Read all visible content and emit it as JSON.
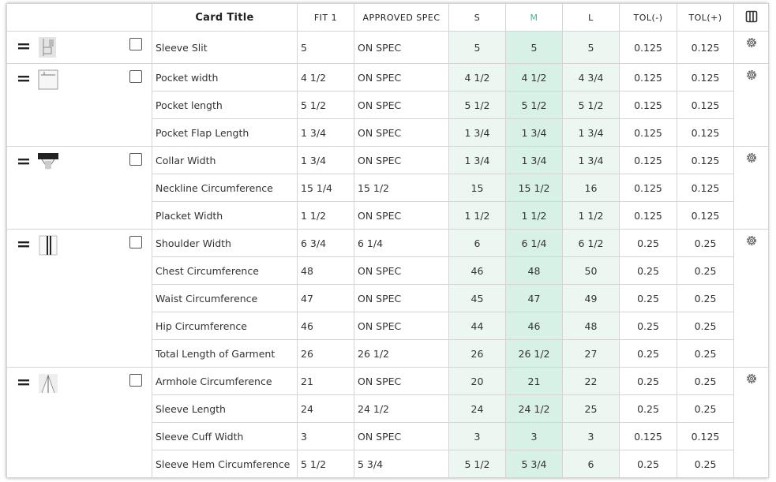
{
  "header": [
    "Card Title",
    "FIT 1",
    "APPROVED SPEC",
    "S",
    "M",
    "L",
    "TOL(-)",
    "TOL(+)"
  ],
  "groups": [
    {
      "rows": [
        [
          "Sleeve Slit",
          "5",
          "ON SPEC",
          "5",
          "5",
          "5",
          "0.125",
          "0.125"
        ]
      ]
    },
    {
      "rows": [
        [
          "Pocket width",
          "4 1/2",
          "ON SPEC",
          "4 1/2",
          "4 1/2",
          "4 3/4",
          "0.125",
          "0.125"
        ],
        [
          "Pocket length",
          "5 1/2",
          "ON SPEC",
          "5 1/2",
          "5 1/2",
          "5 1/2",
          "0.125",
          "0.125"
        ],
        [
          "Pocket Flap Length",
          "1 3/4",
          "ON SPEC",
          "1 3/4",
          "1 3/4",
          "1 3/4",
          "0.125",
          "0.125"
        ]
      ]
    },
    {
      "rows": [
        [
          "Collar Width",
          "1 3/4",
          "ON SPEC",
          "1 3/4",
          "1 3/4",
          "1 3/4",
          "0.125",
          "0.125"
        ],
        [
          "Neckline Circumference",
          "15 1/4",
          "15 1/2",
          "15",
          "15 1/2",
          "16",
          "0.125",
          "0.125"
        ],
        [
          "Placket Width",
          "1 1/2",
          "ON SPEC",
          "1 1/2",
          "1 1/2",
          "1 1/2",
          "0.125",
          "0.125"
        ]
      ]
    },
    {
      "rows": [
        [
          "Shoulder Width",
          "6 3/4",
          "6 1/4",
          "6",
          "6 1/4",
          "6 1/2",
          "0.25",
          "0.25"
        ],
        [
          "Chest Circumference",
          "48",
          "ON SPEC",
          "46",
          "48",
          "50",
          "0.25",
          "0.25"
        ],
        [
          "Waist Circumference",
          "47",
          "ON SPEC",
          "45",
          "47",
          "49",
          "0.25",
          "0.25"
        ],
        [
          "Hip Circumference",
          "46",
          "ON SPEC",
          "44",
          "46",
          "48",
          "0.25",
          "0.25"
        ],
        [
          "Total Length of Garment",
          "26",
          "26 1/2",
          "26",
          "26 1/2",
          "27",
          "0.25",
          "0.25"
        ]
      ]
    },
    {
      "rows": [
        [
          "Armhole Circumference",
          "21",
          "ON SPEC",
          "20",
          "21",
          "22",
          "0.25",
          "0.25"
        ],
        [
          "Sleeve Length",
          "24",
          "24 1/2",
          "24",
          "24 1/2",
          "25",
          "0.25",
          "0.25"
        ],
        [
          "Sleeve Cuff Width",
          "3",
          "ON SPEC",
          "3",
          "3",
          "3",
          "0.125",
          "0.125"
        ],
        [
          "Sleeve Hem Circumference",
          "5 1/2",
          "5 3/4",
          "5 1/2",
          "5 3/4",
          "6",
          "0.25",
          "0.25"
        ]
      ]
    }
  ]
}
